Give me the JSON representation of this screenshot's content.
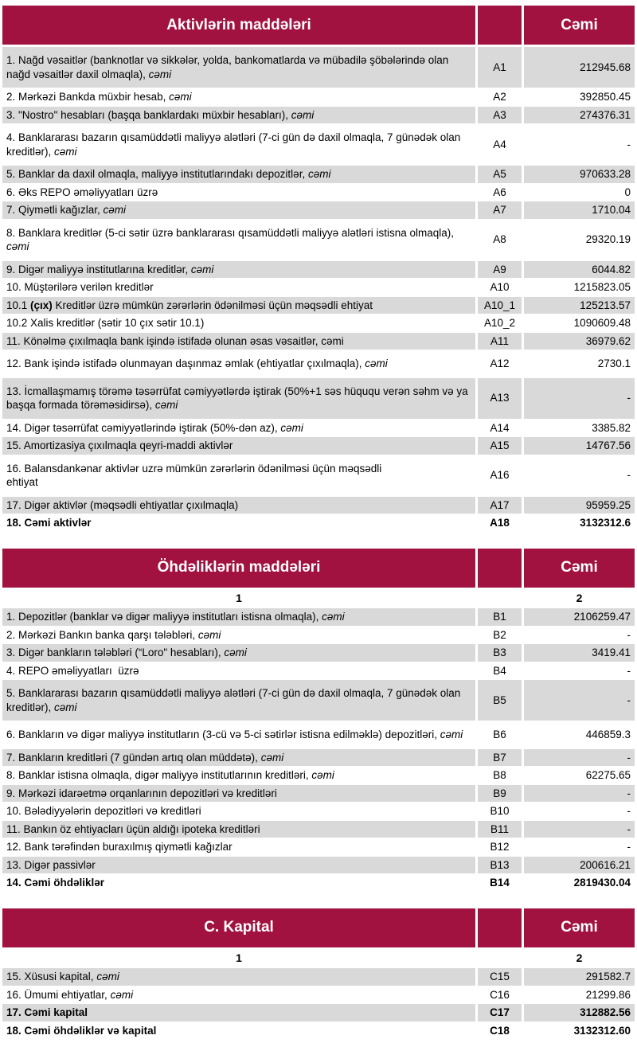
{
  "palette": {
    "header_bg": "#A11240",
    "header_text": "#FFFFFF",
    "row_shaded_bg": "#D9D9D9",
    "row_plain_bg": "#FFFFFF",
    "text": "#000000"
  },
  "tables": [
    {
      "title": "Aktivlərin maddələri",
      "amount_header": "Cəmi",
      "subheader": null,
      "rows": [
        {
          "code": "A1",
          "value": "212945.68",
          "tall": true,
          "parts": [
            {
              "t": "1. Nağd vəsaitlər (banknotlar və sikkələr, yolda, bankomatlarda və mübadilə şöbələrində olan nağd vəsaitlər daxil olmaqla), "
            },
            {
              "t": "cəmi",
              "i": true
            }
          ]
        },
        {
          "code": "A2",
          "value": "392850.45",
          "parts": [
            {
              "t": "2. Mərkəzi Bankda müxbir hesab, "
            },
            {
              "t": "cəmi",
              "i": true
            }
          ]
        },
        {
          "code": "A3",
          "value": "274376.31",
          "parts": [
            {
              "t": "3. \"Nostro\" hesabları (başqa banklardakı müxbir hesabları), "
            },
            {
              "t": "cəmi",
              "i": true
            }
          ]
        },
        {
          "code": "A4",
          "value": "-",
          "tall": true,
          "parts": [
            {
              "t": "4. Banklararası bazarın qısamüddətli maliyyə alətləri (7-ci gün də daxil olmaqla, 7 günədək olan kreditlər), "
            },
            {
              "t": "cəmi",
              "i": true
            }
          ]
        },
        {
          "code": "A5",
          "value": "970633.28",
          "parts": [
            {
              "t": "5. Banklar da daxil olmaqla, maliyyə institutlarındakı depozitlər, "
            },
            {
              "t": "cəmi",
              "i": true
            }
          ]
        },
        {
          "code": "A6",
          "value": "0",
          "parts": [
            {
              "t": "6. Əks REPO əməliyyatları üzrə"
            }
          ]
        },
        {
          "code": "A7",
          "value": "1710.04",
          "parts": [
            {
              "t": "7. Qiymətli kağızlar, "
            },
            {
              "t": "cəmi",
              "i": true
            }
          ]
        },
        {
          "code": "A8",
          "value": "29320.19",
          "tall": true,
          "parts": [
            {
              "t": "8. Banklara kreditlər (5-ci sətir üzrə banklararası qısamüddətli maliyyə alətləri istisna olmaqla), "
            },
            {
              "t": "cəmi",
              "i": true
            }
          ]
        },
        {
          "code": "A9",
          "value": "6044.82",
          "parts": [
            {
              "t": "9. Digər maliyyə institutlarına kreditlər, "
            },
            {
              "t": "cəmi",
              "i": true
            }
          ]
        },
        {
          "code": "A10",
          "value": "1215823.05",
          "parts": [
            {
              "t": "10. Müştərilərə verilən kreditlər"
            }
          ]
        },
        {
          "code": "A10_1",
          "value": "125213.57",
          "parts": [
            {
              "t": "10.1 "
            },
            {
              "t": "(çıx)",
              "b": true
            },
            {
              "t": " Kreditlər üzrə mümkün zərərlərin ödənilməsi üçün məqsədli ehtiyat"
            }
          ]
        },
        {
          "code": "A10_2",
          "value": "1090609.48",
          "parts": [
            {
              "t": "10.2 Xalis kreditlər (sətir 10 çıx sətir 10.1)"
            }
          ]
        },
        {
          "code": "A11",
          "value": "36979.62",
          "parts": [
            {
              "t": "11. Könəlmə çıxılmaqla bank işində istifadə olunan əsas vəsaitlər, cəmi"
            }
          ]
        },
        {
          "code": "A12",
          "value": "2730.1",
          "tall": true,
          "parts": [
            {
              "t": "12. Bank işində istifadə olunmayan daşınmaz əmlak (ehtiyatlar çıxılmaqla), "
            },
            {
              "t": "cəmi",
              "i": true
            }
          ]
        },
        {
          "code": "A13",
          "value": "-",
          "tall": true,
          "parts": [
            {
              "t": "13. İcmallaşmamış törəmə təsərrüfat cəmiyyətlərdə iştirak (50%+1 səs hüququ verən səhm və ya başqa formada törəməsidirsə), "
            },
            {
              "t": "cəmi",
              "i": true
            }
          ]
        },
        {
          "code": "A14",
          "value": "3385.82",
          "parts": [
            {
              "t": "14. Digər təsərrüfat cəmiyyətlərində iştirak (50%-dən az), "
            },
            {
              "t": "cəmi",
              "i": true
            }
          ]
        },
        {
          "code": "A15",
          "value": "14767.56",
          "parts": [
            {
              "t": "15. Amortizasiya çıxılmaqla qeyri-maddi aktivlər"
            }
          ]
        },
        {
          "code": "A16",
          "value": "-",
          "tall": true,
          "parts": [
            {
              "t": "16. Balansdankənar aktivlər uzrə mümkün zərərlərin ödənilməsi üçün məqsədli\nehtiyat"
            }
          ]
        },
        {
          "code": "A17",
          "value": "95959.25",
          "parts": [
            {
              "t": "17. Digər aktivlər (məqsədli ehtiyatlar çıxılmaqla)"
            }
          ]
        },
        {
          "code": "A18",
          "value": "3132312.6",
          "bold": true,
          "parts": [
            {
              "t": "18. Cəmi aktivlər"
            }
          ]
        }
      ]
    },
    {
      "title": "Öhdəliklərin maddələri",
      "amount_header": "Cəmi",
      "subheader": {
        "col1": "1",
        "col2": "2"
      },
      "rows": [
        {
          "code": "B1",
          "value": "2106259.47",
          "parts": [
            {
              "t": "1. Depozitlər (banklar və digər maliyyə institutları istisna olmaqla), "
            },
            {
              "t": "cəmi",
              "i": true
            }
          ]
        },
        {
          "code": "B2",
          "value": "-",
          "parts": [
            {
              "t": "2. Mərkəzi Bankın banka qarşı tələbləri, "
            },
            {
              "t": "cəmi",
              "i": true
            }
          ]
        },
        {
          "code": "B3",
          "value": "3419.41",
          "parts": [
            {
              "t": "3. Digər bankların tələbləri (“Loro\" hesabları), "
            },
            {
              "t": "cəmi",
              "i": true
            }
          ]
        },
        {
          "code": "B4",
          "value": "-",
          "parts": [
            {
              "t": "4. REPO əməliyyatları  üzrə"
            }
          ]
        },
        {
          "code": "B5",
          "value": "-",
          "tall": true,
          "parts": [
            {
              "t": "5. Banklararası bazarın qısamüddətli maliyyə alətləri (7-ci gün də daxil olmaqla, 7 günədək olan kreditlər), "
            },
            {
              "t": "cəmi",
              "i": true
            }
          ]
        },
        {
          "code": "B6",
          "value": "446859.3",
          "tall": true,
          "parts": [
            {
              "t": "6. Bankların və digər maliyyə institutların (3-cü və 5-ci sətirlər istisna edilməklə) depozitləri, "
            },
            {
              "t": "cəmi",
              "i": true
            }
          ]
        },
        {
          "code": "B7",
          "value": "-",
          "parts": [
            {
              "t": "7. Bankların kreditləri (7 gündən artıq olan müddətə), "
            },
            {
              "t": "cəmi",
              "i": true
            }
          ]
        },
        {
          "code": "B8",
          "value": "62275.65",
          "parts": [
            {
              "t": "8. Banklar istisna olmaqla, digər maliyyə institutlarının kreditləri, "
            },
            {
              "t": "cəmi",
              "i": true
            }
          ]
        },
        {
          "code": "B9",
          "value": "-",
          "parts": [
            {
              "t": "9. Mərkəzi idarəetmə orqanlarının depozitləri və kreditləri"
            }
          ]
        },
        {
          "code": "B10",
          "value": "-",
          "parts": [
            {
              "t": "10. Bələdiyyələrin depozitləri və kreditləri"
            }
          ]
        },
        {
          "code": "B11",
          "value": "-",
          "parts": [
            {
              "t": "11. Bankın öz ehtiyacları üçün aldığı ipoteka kreditləri"
            }
          ]
        },
        {
          "code": "B12",
          "value": "-",
          "parts": [
            {
              "t": "12. Bank tərəfindən buraxılmış qiymətli kağızlar"
            }
          ]
        },
        {
          "code": "B13",
          "value": "200616.21",
          "parts": [
            {
              "t": "13. Digər passivlər"
            }
          ]
        },
        {
          "code": "B14",
          "value": "2819430.04",
          "bold": true,
          "parts": [
            {
              "t": "14. Cəmi öhdəliklər"
            }
          ]
        }
      ]
    },
    {
      "title": "C. Kapital",
      "amount_header": "Cəmi",
      "subheader": {
        "col1": "1",
        "col2": "2"
      },
      "rows": [
        {
          "code": "C15",
          "value": "291582.7",
          "parts": [
            {
              "t": "15. Xüsusi kapital, "
            },
            {
              "t": "cəmi",
              "i": true
            }
          ]
        },
        {
          "code": "C16",
          "value": "21299.86",
          "parts": [
            {
              "t": "16. Ümumi ehtiyatlar, "
            },
            {
              "t": "cəmi",
              "i": true
            }
          ]
        },
        {
          "code": "C17",
          "value": "312882.56",
          "bold": true,
          "parts": [
            {
              "t": "17. Cəmi kapital"
            }
          ]
        },
        {
          "code": "C18",
          "value": "3132312.60",
          "bold": true,
          "parts": [
            {
              "t": "18. Cəmi öhdəliklər və kapital"
            }
          ]
        }
      ]
    }
  ]
}
